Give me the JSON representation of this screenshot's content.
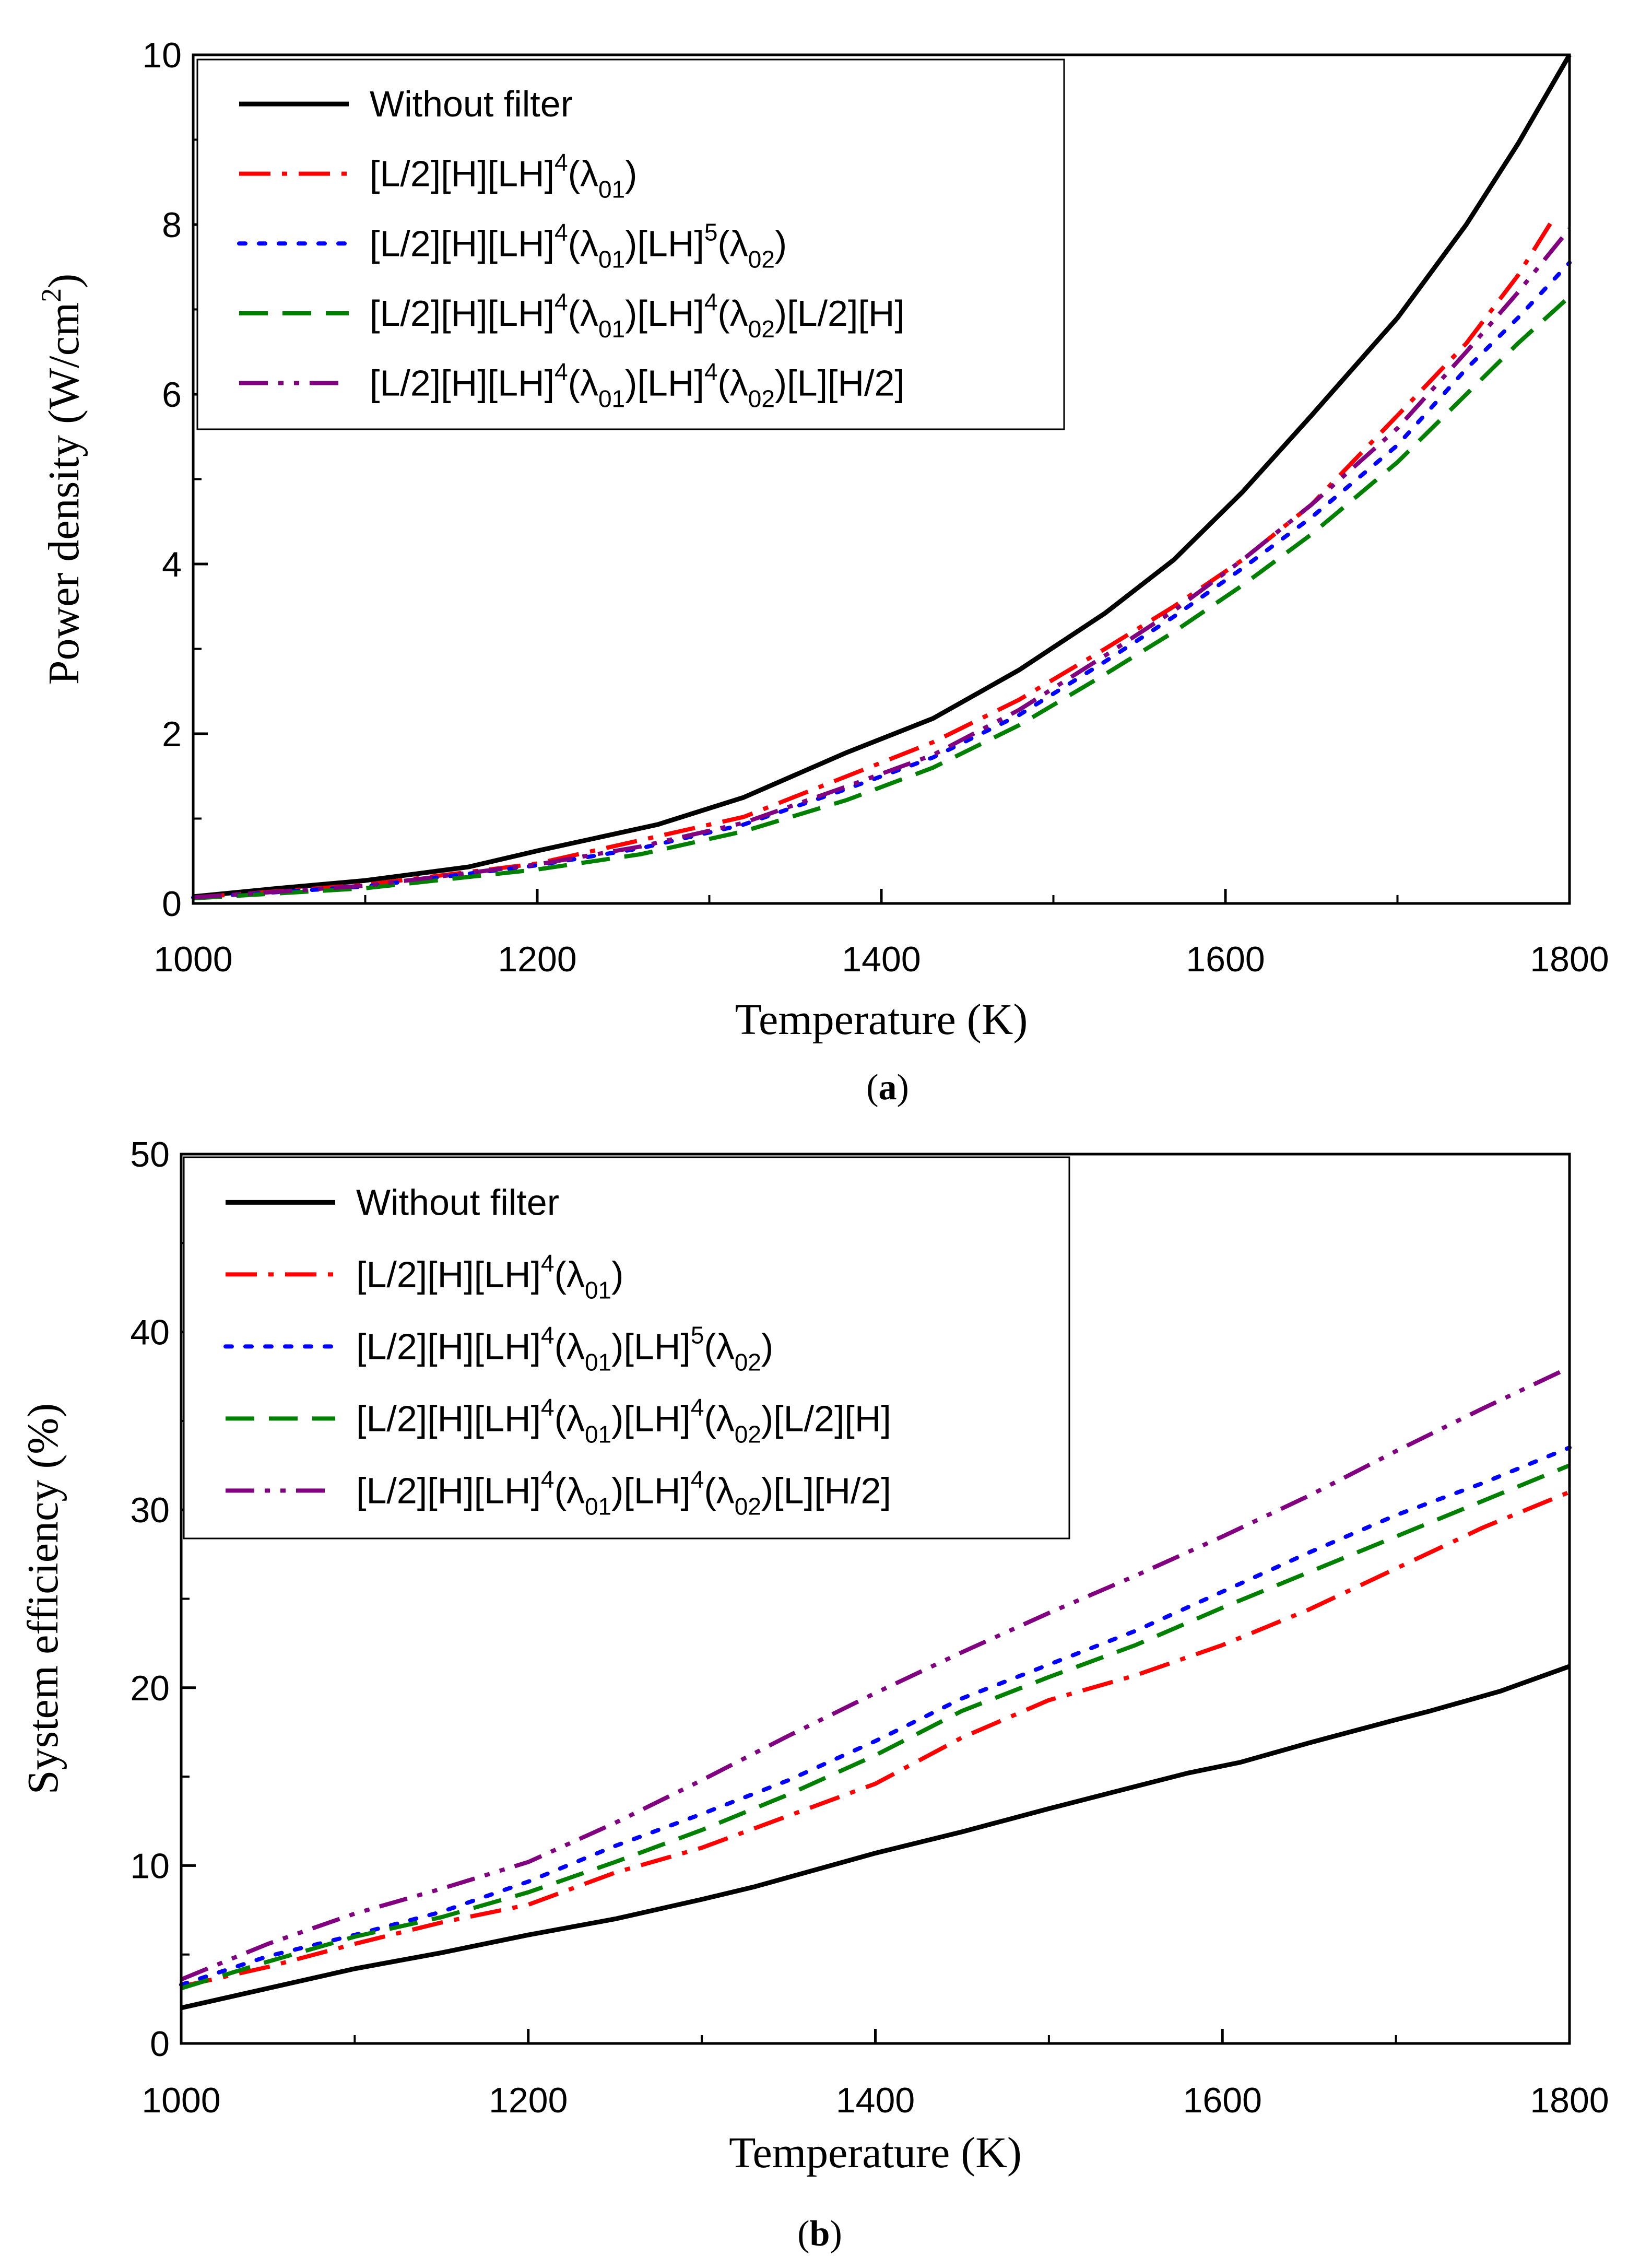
{
  "chart_data": [
    {
      "type": "line",
      "id": "a",
      "caption": {
        "open": "(",
        "letter": "a",
        "close": ")"
      },
      "xlabel": "Temperature (K)",
      "ylabel": {
        "main": "Power density (W/cm",
        "sup": "2",
        "close": ")"
      },
      "xlim": [
        1000,
        1800
      ],
      "ylim": [
        0,
        10
      ],
      "xticks": [
        1000,
        1200,
        1400,
        1600,
        1800
      ],
      "yticks": [
        0,
        2,
        4,
        6,
        8,
        10
      ],
      "series": [
        {
          "name": "Without filter",
          "color": "#000000",
          "style": "solid",
          "x": [
            1000,
            1050,
            1100,
            1160,
            1200,
            1270,
            1320,
            1380,
            1430,
            1480,
            1530,
            1570,
            1610,
            1650,
            1700,
            1740,
            1770,
            1800
          ],
          "y": [
            0.08,
            0.18,
            0.27,
            0.43,
            0.62,
            0.93,
            1.25,
            1.78,
            2.18,
            2.75,
            3.42,
            4.05,
            4.85,
            5.75,
            6.9,
            8.0,
            8.95,
            10.0
          ]
        },
        {
          "name": "[L/2][H][LH]4(λ01)",
          "color": "#ff0000",
          "style": "dashdot",
          "x": [
            1000,
            1100,
            1200,
            1250,
            1320,
            1380,
            1430,
            1480,
            1530,
            1570,
            1610,
            1650,
            1700,
            1740,
            1770,
            1790
          ],
          "y": [
            0.07,
            0.22,
            0.47,
            0.7,
            1.02,
            1.5,
            1.9,
            2.4,
            3.0,
            3.5,
            4.05,
            4.7,
            5.75,
            6.6,
            7.4,
            8.05
          ]
        },
        {
          "name": "[L/2][H][LH]4(λ01)[LH]5(λ02)",
          "color": "#0000ff",
          "style": "dotted",
          "x": [
            1000,
            1100,
            1200,
            1260,
            1320,
            1380,
            1430,
            1480,
            1530,
            1570,
            1610,
            1650,
            1700,
            1740,
            1770,
            1800
          ],
          "y": [
            0.07,
            0.2,
            0.45,
            0.65,
            0.93,
            1.35,
            1.72,
            2.22,
            2.85,
            3.38,
            3.95,
            4.55,
            5.4,
            6.3,
            6.9,
            7.55
          ]
        },
        {
          "name": "[L/2][H][LH]4(λ01)[LH]4(λ02)[L/2][H]",
          "color": "#008000",
          "style": "dashed",
          "x": [
            1000,
            1100,
            1200,
            1260,
            1320,
            1380,
            1430,
            1480,
            1530,
            1570,
            1610,
            1650,
            1700,
            1740,
            1770,
            1800
          ],
          "y": [
            0.06,
            0.18,
            0.4,
            0.58,
            0.85,
            1.22,
            1.6,
            2.1,
            2.7,
            3.2,
            3.75,
            4.35,
            5.2,
            6.0,
            6.6,
            7.15
          ]
        },
        {
          "name": "[L/2][H][LH]4(λ01)[LH]4(λ02)[L][H/2]",
          "color": "#800080",
          "style": "dashdotdot",
          "x": [
            1000,
            1100,
            1200,
            1260,
            1320,
            1380,
            1430,
            1480,
            1530,
            1570,
            1610,
            1650,
            1700,
            1740,
            1770,
            1800
          ],
          "y": [
            0.07,
            0.21,
            0.46,
            0.67,
            0.95,
            1.38,
            1.75,
            2.28,
            2.92,
            3.45,
            4.05,
            4.7,
            5.6,
            6.5,
            7.2,
            7.95
          ]
        }
      ]
    },
    {
      "type": "line",
      "id": "b",
      "caption": {
        "open": "(",
        "letter": "b",
        "close": ")"
      },
      "xlabel": "Temperature (K)",
      "ylabel": {
        "main": "System efficiency (%)"
      },
      "xlim": [
        1000,
        1800
      ],
      "ylim": [
        0,
        50
      ],
      "xticks": [
        1000,
        1200,
        1400,
        1600,
        1800
      ],
      "yticks": [
        0,
        10,
        20,
        30,
        40,
        50
      ],
      "series": [
        {
          "name": "Without filter",
          "color": "#000000",
          "style": "solid",
          "x": [
            1000,
            1050,
            1100,
            1150,
            1200,
            1250,
            1300,
            1330,
            1400,
            1450,
            1500,
            1540,
            1580,
            1610,
            1650,
            1700,
            1720,
            1760,
            1800
          ],
          "y": [
            2.0,
            3.1,
            4.2,
            5.1,
            6.1,
            7.0,
            8.1,
            8.8,
            10.7,
            11.9,
            13.2,
            14.2,
            15.2,
            15.8,
            16.9,
            18.2,
            18.7,
            19.8,
            21.2
          ]
        },
        {
          "name": "[L/2][H][LH]4(λ01)",
          "color": "#ff0000",
          "style": "dashdot",
          "x": [
            1000,
            1050,
            1100,
            1150,
            1200,
            1250,
            1300,
            1350,
            1400,
            1450,
            1500,
            1550,
            1600,
            1650,
            1700,
            1750,
            1800
          ],
          "y": [
            3.2,
            4.3,
            5.6,
            6.8,
            7.8,
            9.6,
            11.0,
            12.8,
            14.6,
            17.2,
            19.3,
            20.7,
            22.4,
            24.4,
            26.7,
            29.0,
            31.0
          ]
        },
        {
          "name": "[L/2][H][LH]4(λ01)[LH]5(λ02)",
          "color": "#0000ff",
          "style": "dotted",
          "x": [
            1000,
            1050,
            1100,
            1150,
            1200,
            1250,
            1300,
            1350,
            1400,
            1450,
            1500,
            1550,
            1600,
            1650,
            1700,
            1750,
            1800
          ],
          "y": [
            3.3,
            4.9,
            6.1,
            7.4,
            9.1,
            11.1,
            12.9,
            14.8,
            17.0,
            19.4,
            21.3,
            23.2,
            25.4,
            27.6,
            29.7,
            31.5,
            33.5
          ]
        },
        {
          "name": "[L/2][H][LH]4(λ01)[LH]4(λ02)[L/2][H]",
          "color": "#008000",
          "style": "dashed",
          "x": [
            1000,
            1050,
            1100,
            1150,
            1200,
            1250,
            1300,
            1350,
            1400,
            1450,
            1500,
            1550,
            1600,
            1650,
            1700,
            1750,
            1800
          ],
          "y": [
            3.1,
            4.6,
            6.0,
            7.1,
            8.5,
            10.2,
            12.0,
            14.0,
            16.2,
            18.7,
            20.6,
            22.4,
            24.5,
            26.5,
            28.5,
            30.5,
            32.5
          ]
        },
        {
          "name": "[L/2][H][LH]4(λ01)[LH]4(λ02)[L][H/2]",
          "color": "#800080",
          "style": "dashdotdot",
          "x": [
            1000,
            1050,
            1100,
            1150,
            1200,
            1250,
            1300,
            1350,
            1400,
            1450,
            1500,
            1550,
            1600,
            1650,
            1700,
            1750,
            1800
          ],
          "y": [
            3.6,
            5.6,
            7.3,
            8.7,
            10.2,
            12.4,
            14.8,
            17.3,
            19.7,
            22.0,
            24.2,
            26.3,
            28.5,
            30.8,
            33.3,
            35.7,
            38.0
          ]
        }
      ]
    }
  ]
}
